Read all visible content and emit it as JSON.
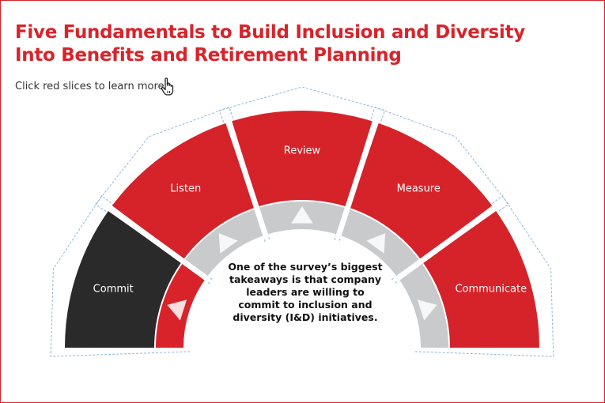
{
  "title": "Five Fundamentals to Build Inclusion and Diversity Into Benefits and Retirement Planning",
  "hint": "Click red slices to learn more",
  "hint_icon": "pointer-hand-icon",
  "center_text": "One of the survey’s biggest takeaways is that company leaders are willing to commit to inclusion and diversity (I&D) initiatives.",
  "segments": [
    {
      "label": "Commit",
      "color": "#2b2b2b",
      "active": true
    },
    {
      "label": "Listen",
      "color": "#d8232a",
      "active": false
    },
    {
      "label": "Review",
      "color": "#d8232a",
      "active": false
    },
    {
      "label": "Measure",
      "color": "#d8232a",
      "active": false
    },
    {
      "label": "Communicate",
      "color": "#d8232a",
      "active": false
    }
  ],
  "colors": {
    "accent": "#d8232a",
    "active": "#2b2b2b",
    "inner_ring": "#c9cacc",
    "outline": "#8fb7d4"
  }
}
